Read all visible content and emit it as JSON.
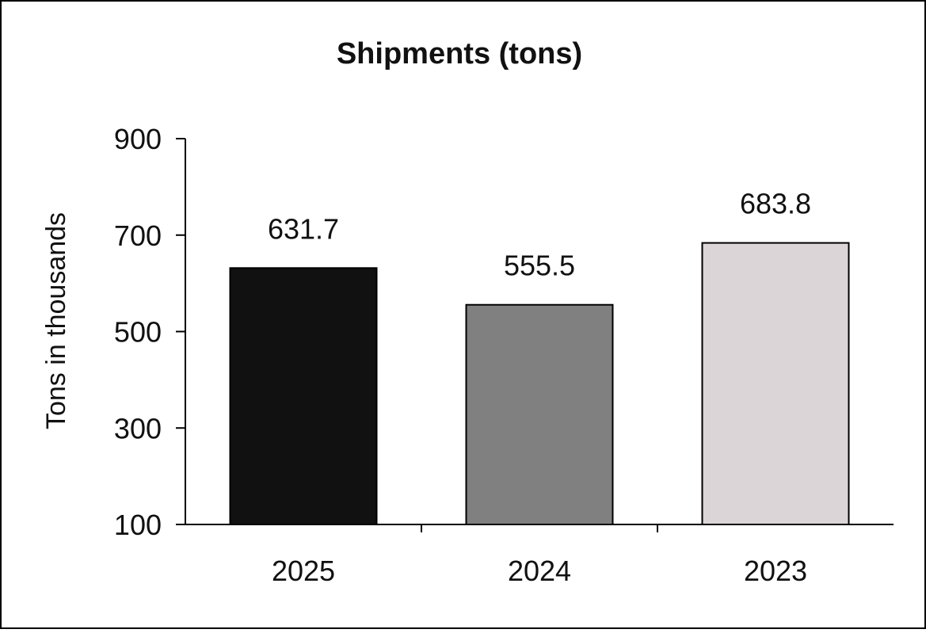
{
  "chart_data": {
    "type": "bar",
    "title": "Shipments (tons)",
    "xlabel": "",
    "ylabel": "Tons in thousands",
    "categories": [
      "2025",
      "2024",
      "2023"
    ],
    "values": [
      631.7,
      555.5,
      683.8
    ],
    "value_labels": [
      "631.7",
      "555.5",
      "683.8"
    ],
    "bar_colors": [
      "#111111",
      "#808080",
      "#dcd5d7"
    ],
    "ylim": [
      100,
      900
    ],
    "yticks": [
      100,
      300,
      500,
      700,
      900
    ],
    "ytick_labels": [
      "100",
      "300",
      "500",
      "700",
      "900"
    ],
    "grid": false,
    "legend": "none"
  }
}
